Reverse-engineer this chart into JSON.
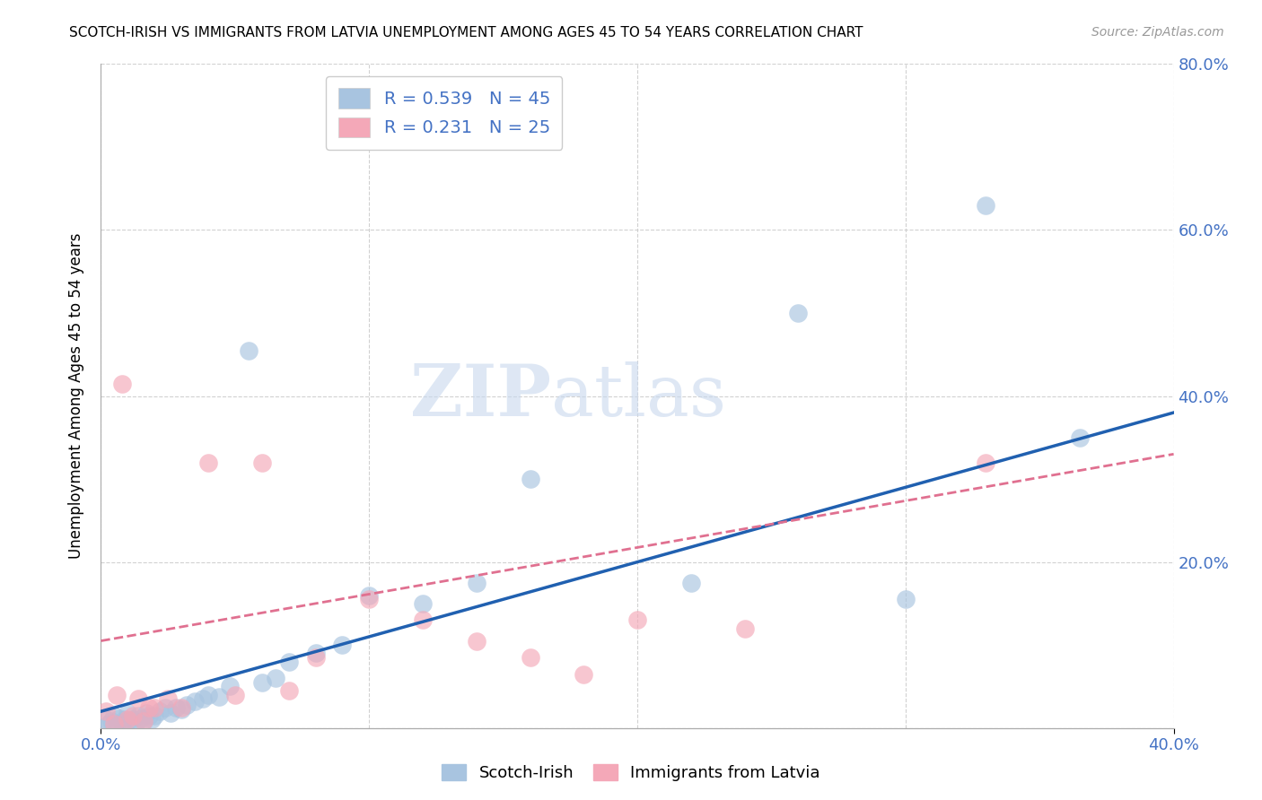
{
  "title": "SCOTCH-IRISH VS IMMIGRANTS FROM LATVIA UNEMPLOYMENT AMONG AGES 45 TO 54 YEARS CORRELATION CHART",
  "source": "Source: ZipAtlas.com",
  "ylabel": "Unemployment Among Ages 45 to 54 years",
  "x_min": 0.0,
  "x_max": 0.4,
  "y_min": 0.0,
  "y_max": 0.8,
  "ytick_values": [
    0.0,
    0.2,
    0.4,
    0.6,
    0.8
  ],
  "xtick_values": [
    0.0,
    0.1,
    0.2,
    0.3,
    0.4
  ],
  "grid_color": "#cccccc",
  "background_color": "#ffffff",
  "scotch_irish_color": "#a8c4e0",
  "latvia_color": "#f4a8b8",
  "scotch_irish_line_color": "#2060b0",
  "latvia_line_color": "#e07090",
  "label_color": "#4472c4",
  "scotch_irish_R": 0.539,
  "scotch_irish_N": 45,
  "latvia_R": 0.231,
  "latvia_N": 25,
  "watermark_zip": "ZIP",
  "watermark_atlas": "atlas",
  "scotch_irish_x": [
    0.002,
    0.003,
    0.004,
    0.005,
    0.006,
    0.007,
    0.008,
    0.009,
    0.01,
    0.01,
    0.012,
    0.013,
    0.014,
    0.015,
    0.016,
    0.017,
    0.018,
    0.019,
    0.02,
    0.022,
    0.024,
    0.026,
    0.028,
    0.03,
    0.032,
    0.035,
    0.038,
    0.04,
    0.044,
    0.048,
    0.055,
    0.06,
    0.065,
    0.07,
    0.08,
    0.09,
    0.1,
    0.12,
    0.14,
    0.16,
    0.22,
    0.26,
    0.3,
    0.33,
    0.365
  ],
  "scotch_irish_y": [
    0.01,
    0.005,
    0.008,
    0.015,
    0.003,
    0.012,
    0.006,
    0.01,
    0.008,
    0.018,
    0.01,
    0.005,
    0.015,
    0.012,
    0.008,
    0.018,
    0.015,
    0.01,
    0.015,
    0.02,
    0.025,
    0.018,
    0.025,
    0.022,
    0.028,
    0.032,
    0.035,
    0.04,
    0.038,
    0.05,
    0.455,
    0.055,
    0.06,
    0.08,
    0.09,
    0.1,
    0.16,
    0.15,
    0.175,
    0.3,
    0.175,
    0.5,
    0.155,
    0.63,
    0.35
  ],
  "latvia_x": [
    0.002,
    0.005,
    0.006,
    0.008,
    0.01,
    0.012,
    0.014,
    0.016,
    0.018,
    0.02,
    0.025,
    0.03,
    0.04,
    0.05,
    0.06,
    0.07,
    0.08,
    0.1,
    0.12,
    0.14,
    0.16,
    0.18,
    0.2,
    0.24,
    0.33
  ],
  "latvia_y": [
    0.02,
    0.005,
    0.04,
    0.415,
    0.01,
    0.015,
    0.035,
    0.008,
    0.025,
    0.025,
    0.035,
    0.025,
    0.32,
    0.04,
    0.32,
    0.045,
    0.085,
    0.155,
    0.13,
    0.105,
    0.085,
    0.065,
    0.13,
    0.12,
    0.32
  ],
  "si_trend_x": [
    0.0,
    0.4
  ],
  "si_trend_y": [
    0.02,
    0.38
  ],
  "lv_trend_x": [
    0.0,
    0.4
  ],
  "lv_trend_y": [
    0.105,
    0.33
  ]
}
